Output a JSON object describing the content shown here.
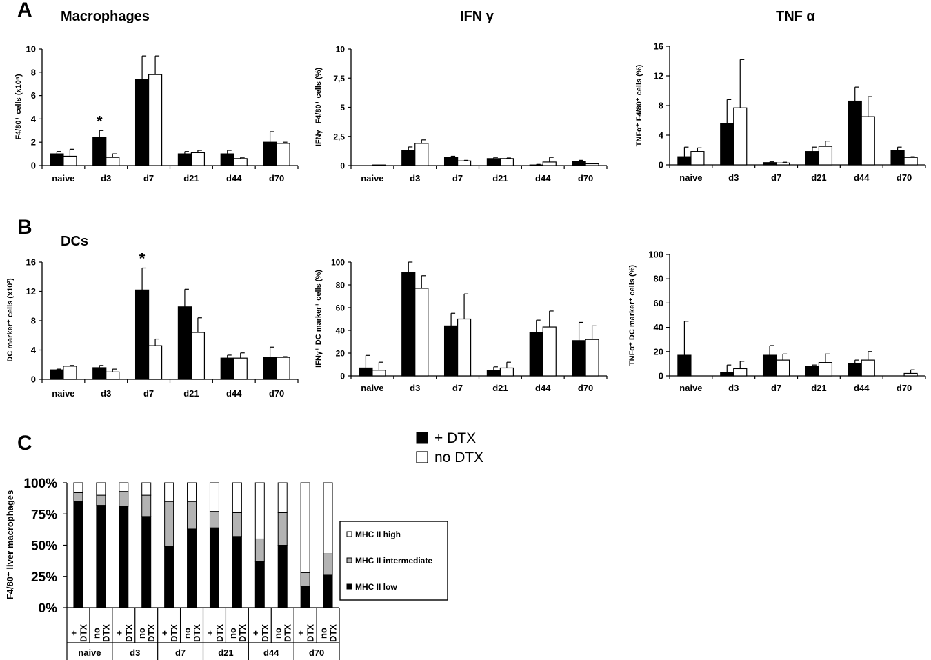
{
  "panel_labels": {
    "a": "A",
    "b": "B",
    "c": "C"
  },
  "titles": {
    "macrophages": "Macrophages",
    "dcs": "DCs",
    "ifn": "IFN γ",
    "tnf": "TNF α"
  },
  "legend": {
    "dtx": "+ DTX",
    "nodtx": "no DTX"
  },
  "colors": {
    "dtx": "#000000",
    "nodtx": "#ffffff",
    "mhc_high": "#ffffff",
    "mhc_int": "#b3b3b3",
    "mhc_low": "#000000",
    "axis": "#000000"
  },
  "chart_data": [
    {
      "id": "A1",
      "type": "bar",
      "title": "Macrophages",
      "ylabel": "F4/80⁺ cells (x10⁵)",
      "ylim": [
        0,
        10
      ],
      "yticks": [
        "0",
        "2",
        "4",
        "6",
        "8",
        "10"
      ],
      "categories": [
        "naive",
        "d3",
        "d7",
        "d21",
        "d44",
        "d70"
      ],
      "series": [
        {
          "name": "+ DTX",
          "values": [
            1.0,
            2.4,
            7.4,
            1.0,
            1.0,
            2.0
          ],
          "errors": [
            0.2,
            0.6,
            2.0,
            0.2,
            0.3,
            0.9
          ]
        },
        {
          "name": "no DTX",
          "values": [
            0.8,
            0.7,
            7.8,
            1.1,
            0.6,
            1.9
          ],
          "errors": [
            0.6,
            0.3,
            1.6,
            0.2,
            0.1,
            0.1
          ]
        }
      ],
      "annotations": [
        {
          "text": "*",
          "category": "d3"
        }
      ]
    },
    {
      "id": "A2",
      "type": "bar",
      "title": "IFN γ",
      "ylabel": "IFNγ⁺ F4/80⁺ cells (%)",
      "ylim": [
        0,
        10
      ],
      "yticks": [
        "0",
        "2,5",
        "5",
        "7,5",
        "10"
      ],
      "categories": [
        "naive",
        "d3",
        "d7",
        "d21",
        "d44",
        "d70"
      ],
      "series": [
        {
          "name": "+ DTX",
          "values": [
            0.0,
            1.3,
            0.7,
            0.6,
            0.05,
            0.35
          ],
          "errors": [
            0,
            0.3,
            0.1,
            0.1,
            0.05,
            0.1
          ]
        },
        {
          "name": "no DTX",
          "values": [
            0.05,
            1.9,
            0.4,
            0.6,
            0.3,
            0.15
          ],
          "errors": [
            0,
            0.3,
            0.05,
            0.05,
            0.4,
            0.05
          ]
        }
      ]
    },
    {
      "id": "A3",
      "type": "bar",
      "title": "TNF α",
      "ylabel": "TNFα⁺ F4/80⁺ cells (%)",
      "ylim": [
        0,
        16
      ],
      "yticks": [
        "0",
        "4",
        "8",
        "12",
        "16"
      ],
      "categories": [
        "naive",
        "d3",
        "d7",
        "d21",
        "d44",
        "d70"
      ],
      "series": [
        {
          "name": "+ DTX",
          "values": [
            1.1,
            5.6,
            0.3,
            1.8,
            8.6,
            1.9
          ],
          "errors": [
            1.3,
            3.2,
            0.1,
            0.6,
            1.9,
            0.5
          ]
        },
        {
          "name": "no DTX",
          "values": [
            1.8,
            7.7,
            0.25,
            2.5,
            6.5,
            1.0
          ],
          "errors": [
            0.5,
            6.5,
            0.1,
            0.7,
            2.7,
            0.1
          ]
        }
      ]
    },
    {
      "id": "B1",
      "type": "bar",
      "title": "DCs",
      "ylabel": "DC marker⁺ cells (x10³)",
      "ylim": [
        0,
        16
      ],
      "yticks": [
        "0",
        "4",
        "8",
        "12",
        "16"
      ],
      "categories": [
        "naive",
        "d3",
        "d7",
        "d21",
        "d44",
        "d70"
      ],
      "series": [
        {
          "name": "+ DTX",
          "values": [
            1.3,
            1.6,
            12.2,
            9.9,
            2.9,
            3.0
          ],
          "errors": [
            0.1,
            0.3,
            3.0,
            2.4,
            0.4,
            1.4
          ]
        },
        {
          "name": "no DTX",
          "values": [
            1.8,
            1.0,
            4.6,
            6.4,
            2.9,
            3.0
          ],
          "errors": [
            0.1,
            0.4,
            0.9,
            2.0,
            0.7,
            0.1
          ]
        }
      ],
      "annotations": [
        {
          "text": "*",
          "category": "d7"
        }
      ]
    },
    {
      "id": "B2",
      "type": "bar",
      "ylabel": "IFNγ⁺ DC marker⁺ cells (%)",
      "ylim": [
        0,
        100
      ],
      "yticks": [
        "0",
        "20",
        "40",
        "60",
        "80",
        "100"
      ],
      "categories": [
        "naive",
        "d3",
        "d7",
        "d21",
        "d44",
        "d70"
      ],
      "series": [
        {
          "name": "+ DTX",
          "values": [
            7,
            91,
            44,
            5,
            38,
            31
          ],
          "errors": [
            11,
            9,
            11,
            3,
            11,
            16
          ]
        },
        {
          "name": "no DTX",
          "values": [
            5,
            77,
            50,
            7,
            43,
            32
          ],
          "errors": [
            7,
            11,
            22,
            5,
            14,
            12
          ]
        }
      ]
    },
    {
      "id": "B3",
      "type": "bar",
      "ylabel": "TNFα⁺ DC marker⁺ cells (%)",
      "ylim": [
        0,
        100
      ],
      "yticks": [
        "0",
        "20",
        "40",
        "60",
        "80",
        "100"
      ],
      "categories": [
        "naive",
        "d3",
        "d7",
        "d21",
        "d44",
        "d70"
      ],
      "series": [
        {
          "name": "+ DTX",
          "values": [
            17,
            3,
            17,
            8,
            10,
            0
          ],
          "errors": [
            28,
            6,
            8,
            1,
            3,
            0
          ]
        },
        {
          "name": "no DTX",
          "values": [
            0,
            6,
            13,
            11,
            13,
            2
          ],
          "errors": [
            0,
            6,
            5,
            7,
            7,
            3
          ]
        }
      ]
    },
    {
      "id": "C",
      "type": "bar",
      "ylabel": "F4/80⁺ liver macrophages",
      "yticks": [
        "0%",
        "25%",
        "50%",
        "75%",
        "100%"
      ],
      "bar_labels": [
        [
          "+",
          "DTX"
        ],
        [
          "no",
          "DTX"
        ],
        [
          "+",
          "DTX"
        ],
        [
          "no",
          "DTX"
        ],
        [
          "+",
          "DTX"
        ],
        [
          "no",
          "DTX"
        ],
        [
          "+",
          "DTX"
        ],
        [
          "no",
          "DTX"
        ],
        [
          "+",
          "DTX"
        ],
        [
          "no",
          "DTX"
        ],
        [
          "+",
          "DTX"
        ],
        [
          "no",
          "DTX"
        ]
      ],
      "groups": [
        "naive",
        "d3",
        "d7",
        "d21",
        "d44",
        "d70"
      ],
      "legend": [
        "MHC II high",
        "MHC II intermediate",
        "MHC II low"
      ],
      "series": [
        {
          "name": "MHC II low",
          "values": [
            85,
            82,
            81,
            73,
            49,
            63,
            64,
            57,
            37,
            50,
            17,
            26
          ]
        },
        {
          "name": "MHC II intermediate",
          "values": [
            7,
            8,
            12,
            17,
            36,
            22,
            13,
            19,
            18,
            26,
            11,
            17
          ]
        },
        {
          "name": "MHC II high",
          "values": [
            8,
            10,
            7,
            10,
            15,
            15,
            23,
            24,
            45,
            24,
            72,
            57
          ]
        }
      ]
    }
  ]
}
